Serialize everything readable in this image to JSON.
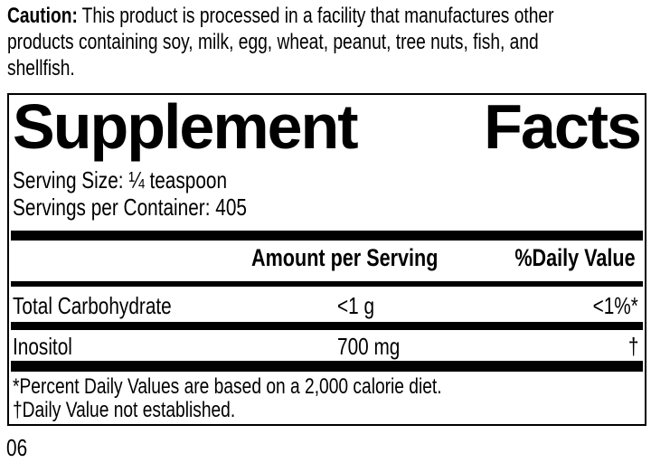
{
  "colors": {
    "ink": "#000000",
    "paper": "#ffffff"
  },
  "caution": {
    "label": "Caution:",
    "line1": "This product is processed in a facility that manufactures other",
    "line2": "products containing soy, milk, egg, wheat, peanut, tree nuts, fish, and",
    "line3": "shellfish."
  },
  "panel": {
    "title_word1": "Supplement",
    "title_word2": "Facts",
    "serving_size": "Serving Size: ¼ teaspoon",
    "servings_per_container": "Servings per Container: 405",
    "columns": {
      "amount": "Amount per Serving",
      "daily_value": "%Daily Value"
    },
    "rows": [
      {
        "name": "Total Carbohydrate",
        "amount": "<1 g",
        "dv": "<1%*"
      },
      {
        "name": "Inositol",
        "amount": "700 mg",
        "dv": "†"
      }
    ],
    "footnotes": [
      "*Percent Daily Values are based on a 2,000 calorie diet.",
      "†Daily Value not established."
    ]
  },
  "footer": {
    "code": "06"
  }
}
